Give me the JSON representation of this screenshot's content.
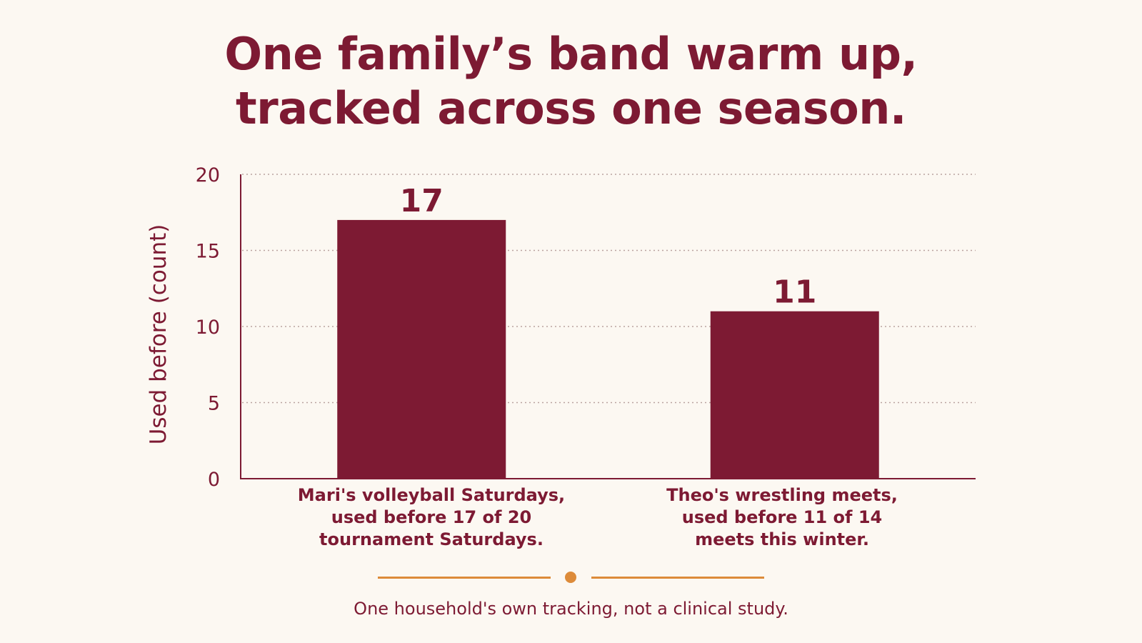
{
  "title_lines": [
    "One family’s band warm up,",
    "tracked across one season."
  ],
  "footnote": "One household's own tracking, not a clinical study.",
  "colors": {
    "background": "#fcf8f2",
    "bar": "#7d1a33",
    "text": "#7d1a33",
    "accent": "#dd8b3a",
    "grid": "#b9a39f"
  },
  "chart_data": {
    "type": "bar",
    "title": "One family’s band warm up, tracked across one season.",
    "ylabel": "Used before (count)",
    "xlabel": "",
    "ylim": [
      0,
      20
    ],
    "yticks": [
      0,
      5,
      10,
      15,
      20
    ],
    "grid": true,
    "categories": [
      "Mari's volleyball Saturdays, used before 17 of 20 tournament Saturdays.",
      "Theo's wrestling meets, used before 11 of 14 meets this winter."
    ],
    "category_lines": [
      [
        "Mari's volleyball Saturdays,",
        "used before 17 of 20",
        "tournament Saturdays."
      ],
      [
        "Theo's wrestling meets,",
        "used before 11 of 14",
        "meets this winter."
      ]
    ],
    "values": [
      17,
      11
    ],
    "data_labels": [
      "17",
      "11"
    ]
  }
}
